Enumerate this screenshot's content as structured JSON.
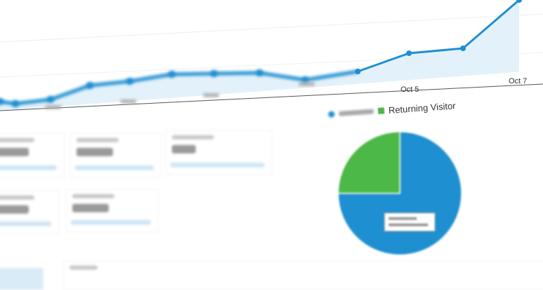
{
  "chart_data": [
    {
      "type": "area",
      "x_tick_labels": [
        "Oct 5",
        "Oct 7"
      ],
      "x_tick_indices": [
        10,
        12
      ],
      "values": [
        15,
        12,
        18,
        38,
        44,
        54,
        55,
        56,
        46,
        58,
        84,
        91,
        160
      ],
      "series_color": "#1e8fd0",
      "fill_color": "#e3f1fa",
      "grid": true
    },
    {
      "type": "pie",
      "legend": [
        {
          "label": "",
          "color": "#1e8fd0"
        },
        {
          "label": "Returning Visitor",
          "color": "#4cb848"
        }
      ],
      "values": [
        75,
        25
      ],
      "legend_placement": "top"
    }
  ]
}
